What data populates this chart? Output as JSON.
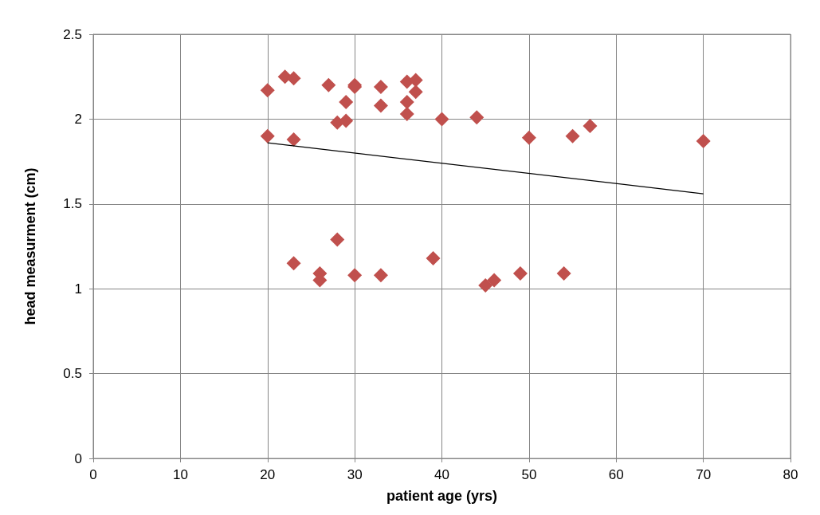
{
  "chart_data": {
    "type": "scatter",
    "xlabel": "patient age (yrs)",
    "ylabel": "head measurment (cm)",
    "xlim": [
      0,
      80
    ],
    "xticks": [
      0,
      10,
      20,
      30,
      40,
      50,
      60,
      70,
      80
    ],
    "ylim": [
      0,
      2.5
    ],
    "yticks": [
      0,
      0.5,
      1,
      1.5,
      2,
      2.5
    ],
    "grid": true,
    "marker": "diamond",
    "series": [
      {
        "color": "#c0504d",
        "x": [
          20,
          22,
          23,
          27,
          30,
          30,
          33,
          36,
          37,
          37,
          36,
          29,
          33,
          36,
          28,
          29,
          40,
          44,
          20,
          23,
          50,
          55,
          57,
          70,
          28,
          23,
          26,
          26,
          30,
          33,
          39,
          45,
          46,
          49,
          54
        ],
        "values": [
          2.17,
          2.25,
          2.24,
          2.2,
          2.2,
          2.19,
          2.19,
          2.22,
          2.23,
          2.16,
          2.1,
          2.1,
          2.08,
          2.03,
          1.98,
          1.99,
          2.0,
          2.01,
          1.9,
          1.88,
          1.89,
          1.9,
          1.96,
          1.87,
          1.29,
          1.15,
          1.09,
          1.05,
          1.08,
          1.08,
          1.18,
          1.02,
          1.05,
          1.09,
          1.09
        ]
      },
      {
        "type": "line",
        "color": "#000000",
        "marker": "none",
        "x": [
          20,
          70
        ],
        "values": [
          1.86,
          1.56
        ]
      }
    ]
  }
}
